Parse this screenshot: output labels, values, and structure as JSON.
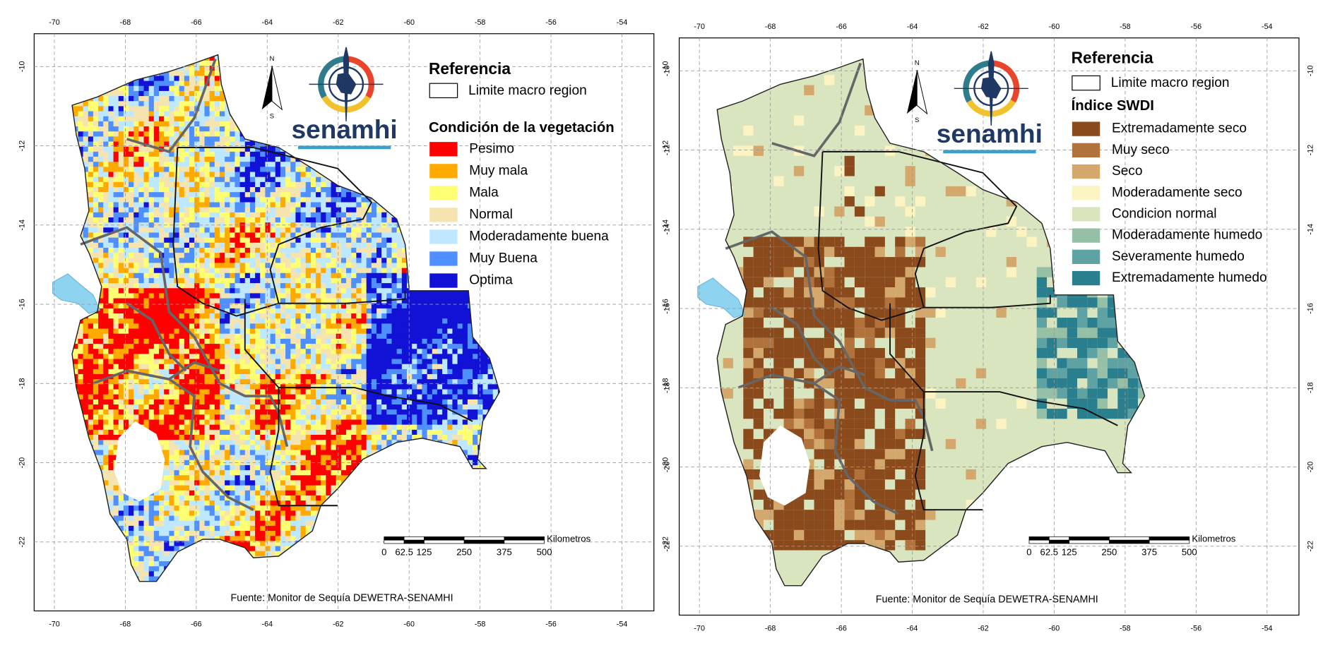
{
  "maps": [
    {
      "lonlim": [
        -70.57,
        -53.1
      ],
      "latlim": [
        -23.74,
        -9.17
      ],
      "lon_ticks": [
        -70,
        -68,
        -66,
        -64,
        -62,
        -60,
        -58,
        -56,
        -54
      ],
      "lat_ticks": [
        -10,
        -12,
        -14,
        -16,
        -18,
        -20,
        -22
      ],
      "legend": {
        "title": "Referencia",
        "boundary": "Limite macro region",
        "heading": "Condición de la vegetación",
        "items": [
          {
            "label": "Pesimo",
            "color": "#ff0000"
          },
          {
            "label": "Muy mala",
            "color": "#ffaa00"
          },
          {
            "label": "Mala",
            "color": "#ffff73"
          },
          {
            "label": "Normal",
            "color": "#f5e4b0"
          },
          {
            "label": "Moderadamente buena",
            "color": "#bee8ff"
          },
          {
            "label": "Muy Buena",
            "color": "#4f8fff"
          },
          {
            "label": "Optima",
            "color": "#1212d6"
          }
        ]
      },
      "scale_bar": {
        "ticks": [
          0,
          62.5,
          125,
          250,
          375,
          500
        ],
        "unit": "Kilometros"
      },
      "source": "Fuente: Monitor de Sequía DEWETRA-SENAMHI"
    },
    {
      "lonlim": [
        -70.57,
        -53.1
      ],
      "latlim": [
        -23.74,
        -9.17
      ],
      "lon_ticks": [
        -70,
        -68,
        -66,
        -64,
        -62,
        -60,
        -58,
        -56,
        -54
      ],
      "lat_ticks": [
        -10,
        -12,
        -14,
        -16,
        -18,
        -20,
        -22
      ],
      "legend": {
        "title": "Referencia",
        "boundary": "Limite macro region",
        "heading": "Índice SWDI",
        "items": [
          {
            "label": "Extremadamente seco",
            "color": "#8b4a1c"
          },
          {
            "label": "Muy seco",
            "color": "#b1723c"
          },
          {
            "label": "Seco",
            "color": "#d4a76c"
          },
          {
            "label": "Moderadamente seco",
            "color": "#fbf3c2"
          },
          {
            "label": "Condicion normal",
            "color": "#d8e5be"
          },
          {
            "label": "Moderadamente humedo",
            "color": "#95c0a5"
          },
          {
            "label": "Severamente humedo",
            "color": "#5fa2a4"
          },
          {
            "label": "Extremadamente humedo",
            "color": "#2a7f8f"
          }
        ]
      },
      "scale_bar": {
        "ticks": [
          0,
          62.5,
          125,
          250,
          375,
          500
        ],
        "unit": "Kilometros"
      },
      "source": "Fuente: Monitor de Sequía DEWETRA-SENAMHI"
    }
  ],
  "logo": "senamhi",
  "north": "N",
  "south": "S"
}
